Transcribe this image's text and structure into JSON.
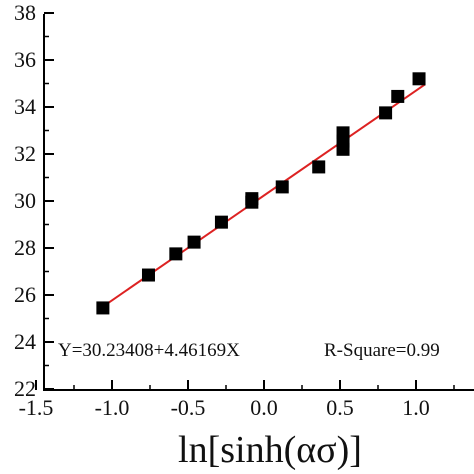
{
  "chart_data": {
    "type": "scatter",
    "title": "",
    "xlabel": "ln[sinh(ασ)]",
    "ylabel": "",
    "xlim": [
      -1.5,
      1.35
    ],
    "ylim": [
      22,
      38
    ],
    "x_ticks": [
      "-1.5",
      "-1.0",
      "-0.5",
      "0.0",
      "0.5",
      "1.0"
    ],
    "x_tick_values": [
      -1.5,
      -1.0,
      -0.5,
      0.0,
      0.5,
      1.0
    ],
    "y_ticks": [
      "22",
      "24",
      "26",
      "28",
      "30",
      "32",
      "34",
      "36",
      "38"
    ],
    "y_tick_values": [
      22,
      24,
      26,
      28,
      30,
      32,
      34,
      36,
      38
    ],
    "series": [
      {
        "marker": "square",
        "color": "#000000",
        "points": [
          {
            "x": -1.06,
            "y": 25.45
          },
          {
            "x": -0.76,
            "y": 26.85
          },
          {
            "x": -0.58,
            "y": 27.75
          },
          {
            "x": -0.46,
            "y": 28.25
          },
          {
            "x": -0.28,
            "y": 29.1
          },
          {
            "x": -0.08,
            "y": 29.95
          },
          {
            "x": -0.08,
            "y": 30.1
          },
          {
            "x": 0.12,
            "y": 30.6
          },
          {
            "x": 0.36,
            "y": 31.45
          },
          {
            "x": 0.52,
            "y": 32.2
          },
          {
            "x": 0.52,
            "y": 32.55
          },
          {
            "x": 0.52,
            "y": 32.9
          },
          {
            "x": 0.8,
            "y": 33.75
          },
          {
            "x": 0.88,
            "y": 34.45
          },
          {
            "x": 1.02,
            "y": 35.2
          }
        ]
      }
    ],
    "fit_line": {
      "color": "#dd2222",
      "intercept": 30.23408,
      "slope": 4.46169,
      "x_range": [
        -1.06,
        1.06
      ]
    },
    "annotations": {
      "equation": "Y=30.23408+4.46169X",
      "r_square": "R-Square=0.99"
    },
    "grid": false
  }
}
